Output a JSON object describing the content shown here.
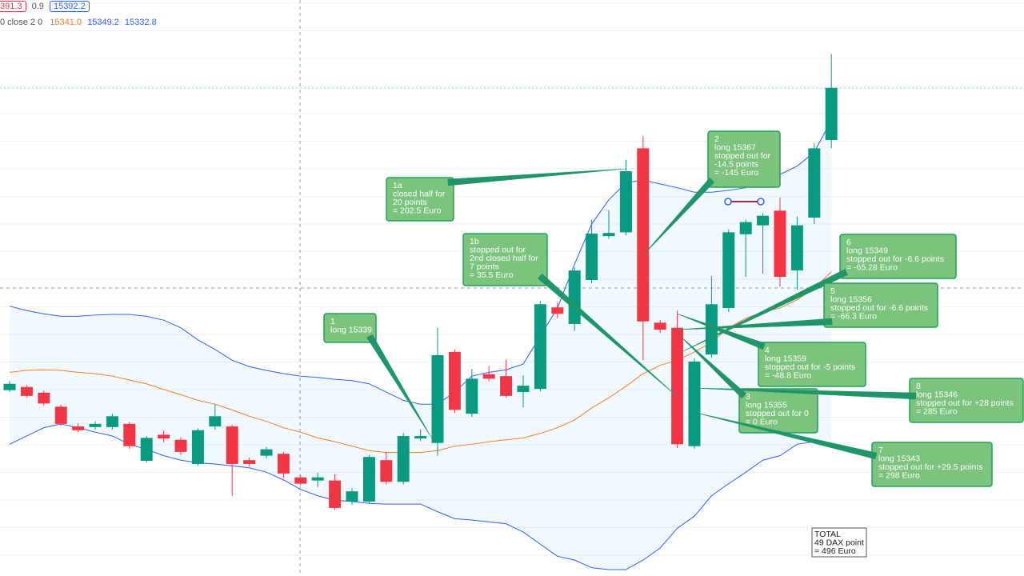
{
  "legend": {
    "top": [
      "391.3",
      "0.9",
      "15392.2"
    ],
    "bands": {
      "label": "0 close 2 0",
      "middle": "15341.0",
      "upper": "15349.2",
      "lower": "15332.8"
    }
  },
  "chart_data": {
    "type": "candlestick",
    "ylim": [
      15318,
      15408.5
    ],
    "up_color": "#089981",
    "down_color": "#f23645",
    "open": [
      15347.2,
      15347.7,
      15346.8,
      15344.6,
      15341.5,
      15341.4,
      15341.4,
      15341.9,
      15336.1,
      15340.2,
      15339.4,
      15335.6,
      15341.5,
      15341.5,
      15336.2,
      15336.9,
      15337.2,
      15333.5,
      15333.0,
      15333.0,
      15329.7,
      15329.7,
      15336.2,
      15332.8,
      15339.6,
      15338.9,
      15353.2,
      15343.5,
      15349.7,
      15349.4,
      15346.9,
      15347.4,
      15360.2,
      15357.6,
      15364.5,
      15371.4,
      15372.0,
      15385.2,
      15357.8,
      15357.0,
      15338.4,
      15352.8,
      15360.1,
      15371.7,
      15373.1,
      15375.4,
      15366.0,
      15374.3,
      15386.5
    ],
    "high": [
      15348.6,
      15348.0,
      15347.1,
      15344.9,
      15342.0,
      15342.3,
      15343.5,
      15342.2,
      15340.0,
      15340.8,
      15339.8,
      15341.2,
      15345.0,
      15341.8,
      15336.6,
      15338.3,
      15337.5,
      15333.8,
      15334.2,
      15334.0,
      15331.8,
      15337.0,
      15337.5,
      15340.5,
      15341.0,
      15357.0,
      15353.6,
      15350.5,
      15351.0,
      15352.0,
      15349.5,
      15361.2,
      15361.0,
      15366.5,
      15374.0,
      15375.5,
      15383.4,
      15387.1,
      15358.2,
      15359.7,
      15352.2,
      15365.1,
      15372.5,
      15374.0,
      15375.0,
      15377.5,
      15374.5,
      15386.0,
      15400.0
    ],
    "low": [
      15346.9,
      15346.0,
      15344.8,
      15341.6,
      15340.6,
      15341.0,
      15341.0,
      15338.0,
      15335.8,
      15339.0,
      15337.0,
      15335.3,
      15341.0,
      15330.6,
      15335.2,
      15336.5,
      15333.4,
      15332.2,
      15332.0,
      15328.4,
      15329.2,
      15329.4,
      15332.4,
      15332.4,
      15339.2,
      15336.9,
      15343.6,
      15343.0,
      15348.6,
      15346.0,
      15344.5,
      15347.0,
      15358.5,
      15356.5,
      15364.0,
      15371.0,
      15371.5,
      15351.9,
      15356.2,
      15338.1,
      15338.0,
      15352.3,
      15359.5,
      15365.0,
      15365.5,
      15363.5,
      15363.0,
      15373.3,
      15385.2
    ],
    "close": [
      15348.2,
      15346.3,
      15345.1,
      15341.9,
      15340.9,
      15341.9,
      15343.1,
      15338.4,
      15339.7,
      15339.6,
      15337.5,
      15340.9,
      15343.1,
      15335.6,
      15335.6,
      15337.9,
      15334.1,
      15332.5,
      15333.5,
      15328.7,
      15331.3,
      15336.7,
      15332.8,
      15340.0,
      15340.0,
      15352.7,
      15344.1,
      15349.0,
      15349.0,
      15346.3,
      15347.9,
      15360.7,
      15359.2,
      15366.0,
      15371.8,
      15371.9,
      15381.6,
      15358.0,
      15356.7,
      15338.7,
      15351.7,
      15360.7,
      15372.0,
      15373.6,
      15374.6,
      15365.0,
      15373.1,
      15385.2,
      15394.7
    ],
    "lines": [
      {
        "color": "#2962ff",
        "values": [
          15360.4,
          15359.7,
          15359.2,
          15358.8,
          15358.8,
          15359.0,
          15359.1,
          15359.1,
          15358.8,
          15358.2,
          15357.0,
          15355.1,
          15353.6,
          15351.9,
          15350.9,
          15350.3,
          15349.8,
          15349.4,
          15349.2,
          15348.9,
          15348.7,
          15348.2,
          15346.9,
          15345.6,
          15345.0,
          15345.0,
          15346.9,
          15349.4,
          15350.0,
          15350.4,
          15351.3,
          15355.7,
          15360.1,
          15367.0,
          15373.3,
          15377.1,
          15379.8,
          15380.2,
          15379.6,
          15379.0,
          15378.3,
          15378.3,
          15378.6,
          15379.0,
          15379.8,
          15381.1,
          15382.4,
          15384.6,
          15389.6
        ]
      },
      {
        "color": "#f57c2c",
        "values": [
          15350.0,
          15350.3,
          15350.4,
          15350.3,
          15350.0,
          15349.8,
          15349.4,
          15348.8,
          15348.2,
          15347.3,
          15346.5,
          15345.6,
          15345.0,
          15344.1,
          15343.1,
          15342.3,
          15341.3,
          15340.6,
          15339.7,
          15339.1,
          15338.4,
          15337.7,
          15337.4,
          15337.4,
          15337.4,
          15337.7,
          15338.4,
          15338.7,
          15339.1,
          15339.4,
          15339.7,
          15340.4,
          15341.3,
          15342.5,
          15344.4,
          15346.0,
          15347.8,
          15349.8,
          15351.1,
          15351.9,
          15353.2,
          15354.7,
          15357.0,
          15358.5,
          15359.5,
          15360.1,
          15361.4,
          15363.2,
          15365.8
        ]
      },
      {
        "color": "#2962ff",
        "values": [
          15338.7,
          15340.0,
          15341.3,
          15341.9,
          15341.3,
          15340.6,
          15340.0,
          15338.7,
          15337.9,
          15336.9,
          15336.2,
          15335.8,
          15335.6,
          15335.3,
          15335.0,
          15334.3,
          15333.1,
          15331.6,
          15330.6,
          15329.9,
          15329.7,
          15329.4,
          15329.3,
          15329.3,
          15329.3,
          15328.1,
          15327.0,
          15326.8,
          15326.5,
          15326.2,
          15324.9,
          15323.0,
          15321.1,
          15320.5,
          15319.3,
          15319.0,
          15319.0,
          15320.5,
          15322.4,
          15325.5,
          15327.4,
          15330.6,
          15332.5,
          15334.3,
          15336.2,
          15336.9,
          15338.7,
          15339.1,
          15338.7
        ]
      }
    ]
  },
  "annotations": [
    {
      "lines": [
        "1",
        "long 15339"
      ]
    },
    {
      "lines": [
        "1a",
        "closed half for",
        "20 points",
        "= 202.5 Euro"
      ]
    },
    {
      "lines": [
        "1b",
        "stopped out for",
        "2nd closed half for",
        "7 points",
        "= 35.5 Euro"
      ]
    },
    {
      "lines": [
        "2",
        "long 15367",
        "stopped out for",
        "-14.5 points",
        "= -145 Euro"
      ]
    },
    {
      "lines": [
        "6",
        "long 15349",
        "stopped out for -6.6 points",
        "= -65.28 Euro"
      ]
    },
    {
      "lines": [
        "5",
        "long 15356",
        "stopped out for -6.6 points",
        "= -66.3 Euro"
      ]
    },
    {
      "lines": [
        "4",
        "long 15359",
        "stopped out for -5 points",
        "= -48.8 Euro"
      ]
    },
    {
      "lines": [
        "3",
        "long 15355",
        "stopped out for 0",
        "= 0 Euro"
      ]
    },
    {
      "lines": [
        "8",
        "long 15346",
        "stopped out for +28 points",
        "= 285 Euro"
      ]
    },
    {
      "lines": [
        "7",
        "long 15343",
        "stopped out for +29.5 points",
        "= 298 Euro"
      ]
    }
  ],
  "total": {
    "lines": [
      "TOTAL",
      "49 DAX point",
      "= 496 Euro"
    ]
  }
}
